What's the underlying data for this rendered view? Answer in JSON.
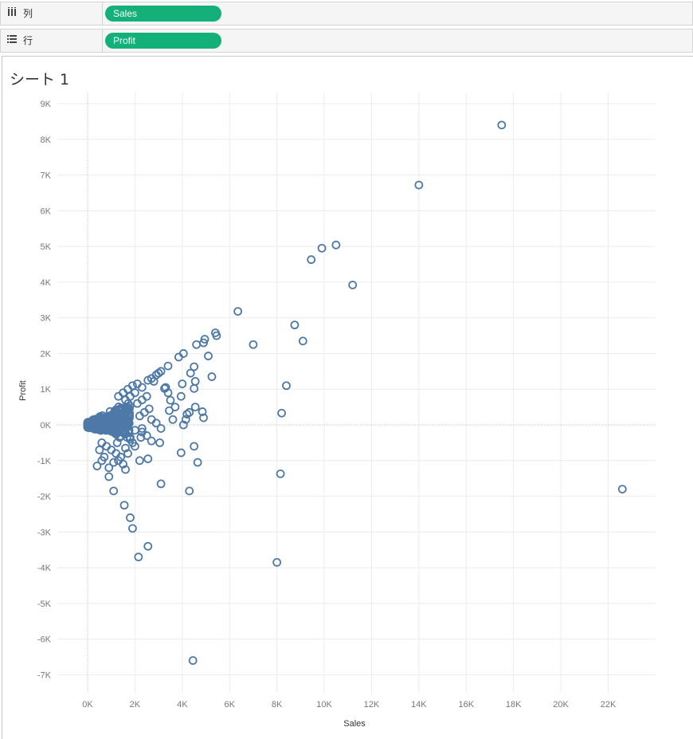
{
  "shelves": {
    "columns": {
      "label": "列",
      "icon": "columns-icon",
      "pill": "Sales"
    },
    "rows": {
      "label": "行",
      "icon": "rows-icon",
      "pill": "Profit"
    }
  },
  "sheet_title": "シート 1",
  "colors": {
    "pill": "#14b07a",
    "mark": "#4e79a7"
  },
  "chart_data": {
    "type": "scatter",
    "title": "シート 1",
    "xlabel": "Sales",
    "ylabel": "Profit",
    "xlim": [
      -1300,
      24000
    ],
    "ylim": [
      -7500,
      9300
    ],
    "x_ticks": [
      {
        "v": 0,
        "label": "0K"
      },
      {
        "v": 2000,
        "label": "2K"
      },
      {
        "v": 4000,
        "label": "4K"
      },
      {
        "v": 6000,
        "label": "6K"
      },
      {
        "v": 8000,
        "label": "8K"
      },
      {
        "v": 10000,
        "label": "10K"
      },
      {
        "v": 12000,
        "label": "12K"
      },
      {
        "v": 14000,
        "label": "14K"
      },
      {
        "v": 16000,
        "label": "16K"
      },
      {
        "v": 18000,
        "label": "18K"
      },
      {
        "v": 20000,
        "label": "20K"
      },
      {
        "v": 22000,
        "label": "22K"
      }
    ],
    "y_ticks": [
      {
        "v": 9000,
        "label": "9K"
      },
      {
        "v": 8000,
        "label": "8K"
      },
      {
        "v": 7000,
        "label": "7K"
      },
      {
        "v": 6000,
        "label": "6K"
      },
      {
        "v": 5000,
        "label": "5K"
      },
      {
        "v": 4000,
        "label": "4K"
      },
      {
        "v": 3000,
        "label": "3K"
      },
      {
        "v": 2000,
        "label": "2K"
      },
      {
        "v": 1000,
        "label": "1K"
      },
      {
        "v": 0,
        "label": "0K"
      },
      {
        "v": -1000,
        "label": "-1K"
      },
      {
        "v": -2000,
        "label": "-2K"
      },
      {
        "v": -3000,
        "label": "-3K"
      },
      {
        "v": -4000,
        "label": "-4K"
      },
      {
        "v": -5000,
        "label": "-5K"
      },
      {
        "v": -6000,
        "label": "-6K"
      },
      {
        "v": -7000,
        "label": "-7K"
      }
    ],
    "grid": true,
    "points": [
      [
        17500,
        8400
      ],
      [
        14000,
        6720
      ],
      [
        10500,
        5040
      ],
      [
        9900,
        4950
      ],
      [
        9450,
        4630
      ],
      [
        11200,
        3920
      ],
      [
        6350,
        3180
      ],
      [
        8750,
        2800
      ],
      [
        9100,
        2350
      ],
      [
        7000,
        2250
      ],
      [
        5400,
        2580
      ],
      [
        5450,
        2500
      ],
      [
        4950,
        2400
      ],
      [
        4900,
        2300
      ],
      [
        4600,
        2250
      ],
      [
        4050,
        2000
      ],
      [
        3850,
        1900
      ],
      [
        5100,
        1930
      ],
      [
        3400,
        1650
      ],
      [
        4500,
        1630
      ],
      [
        5250,
        1350
      ],
      [
        4350,
        1450
      ],
      [
        4550,
        1220
      ],
      [
        4000,
        1150
      ],
      [
        4500,
        1020
      ],
      [
        8400,
        1100
      ],
      [
        3100,
        1500
      ],
      [
        3000,
        1450
      ],
      [
        2900,
        1400
      ],
      [
        2700,
        1300
      ],
      [
        2550,
        1250
      ],
      [
        2800,
        1220
      ],
      [
        3300,
        1050
      ],
      [
        3400,
        900
      ],
      [
        3250,
        1020
      ],
      [
        4850,
        370
      ],
      [
        4550,
        500
      ],
      [
        4200,
        300
      ],
      [
        4150,
        150
      ],
      [
        4050,
        0
      ],
      [
        4300,
        350
      ],
      [
        4900,
        200
      ],
      [
        3450,
        400
      ],
      [
        3600,
        150
      ],
      [
        3700,
        500
      ],
      [
        3950,
        800
      ],
      [
        3500,
        690
      ],
      [
        8200,
        330
      ],
      [
        3050,
        -500
      ],
      [
        2500,
        -300
      ],
      [
        2300,
        -200
      ],
      [
        2250,
        -350
      ],
      [
        4500,
        -600
      ],
      [
        3950,
        -780
      ],
      [
        4650,
        -1050
      ],
      [
        2550,
        -950
      ],
      [
        2200,
        -1000
      ],
      [
        8150,
        -1370
      ],
      [
        3100,
        -1650
      ],
      [
        4300,
        -1850
      ],
      [
        1100,
        -1850
      ],
      [
        900,
        -1450
      ],
      [
        1550,
        -2250
      ],
      [
        1800,
        -2600
      ],
      [
        1900,
        -2900
      ],
      [
        2550,
        -3400
      ],
      [
        2150,
        -3700
      ],
      [
        8000,
        -3850
      ],
      [
        4450,
        -6600
      ],
      [
        22600,
        -1800
      ],
      [
        2100,
        600
      ],
      [
        2300,
        700
      ],
      [
        2500,
        800
      ],
      [
        2000,
        900
      ],
      [
        1800,
        800
      ],
      [
        1600,
        700
      ],
      [
        2600,
        450
      ],
      [
        2400,
        350
      ],
      [
        2200,
        250
      ],
      [
        2700,
        150
      ],
      [
        2900,
        50
      ],
      [
        3100,
        -100
      ],
      [
        2000,
        -150
      ],
      [
        1800,
        -350
      ],
      [
        1900,
        -500
      ],
      [
        1600,
        -650
      ],
      [
        1700,
        -800
      ],
      [
        1400,
        -900
      ],
      [
        1500,
        -1100
      ],
      [
        1300,
        -1000
      ],
      [
        1200,
        -800
      ],
      [
        1000,
        -700
      ],
      [
        800,
        -600
      ],
      [
        600,
        -500
      ],
      [
        500,
        -700
      ],
      [
        700,
        -900
      ],
      [
        600,
        -1000
      ],
      [
        400,
        -1150
      ],
      [
        900,
        -1200
      ],
      [
        1100,
        -1050
      ],
      [
        1600,
        -1250
      ],
      [
        1250,
        -500
      ],
      [
        1350,
        -350
      ],
      [
        2000,
        -600
      ],
      [
        2700,
        -450
      ],
      [
        2300,
        -100
      ],
      [
        1500,
        900
      ],
      [
        1700,
        1000
      ],
      [
        1900,
        1100
      ],
      [
        2100,
        1150
      ],
      [
        2300,
        1050
      ],
      [
        1300,
        800
      ]
    ]
  }
}
